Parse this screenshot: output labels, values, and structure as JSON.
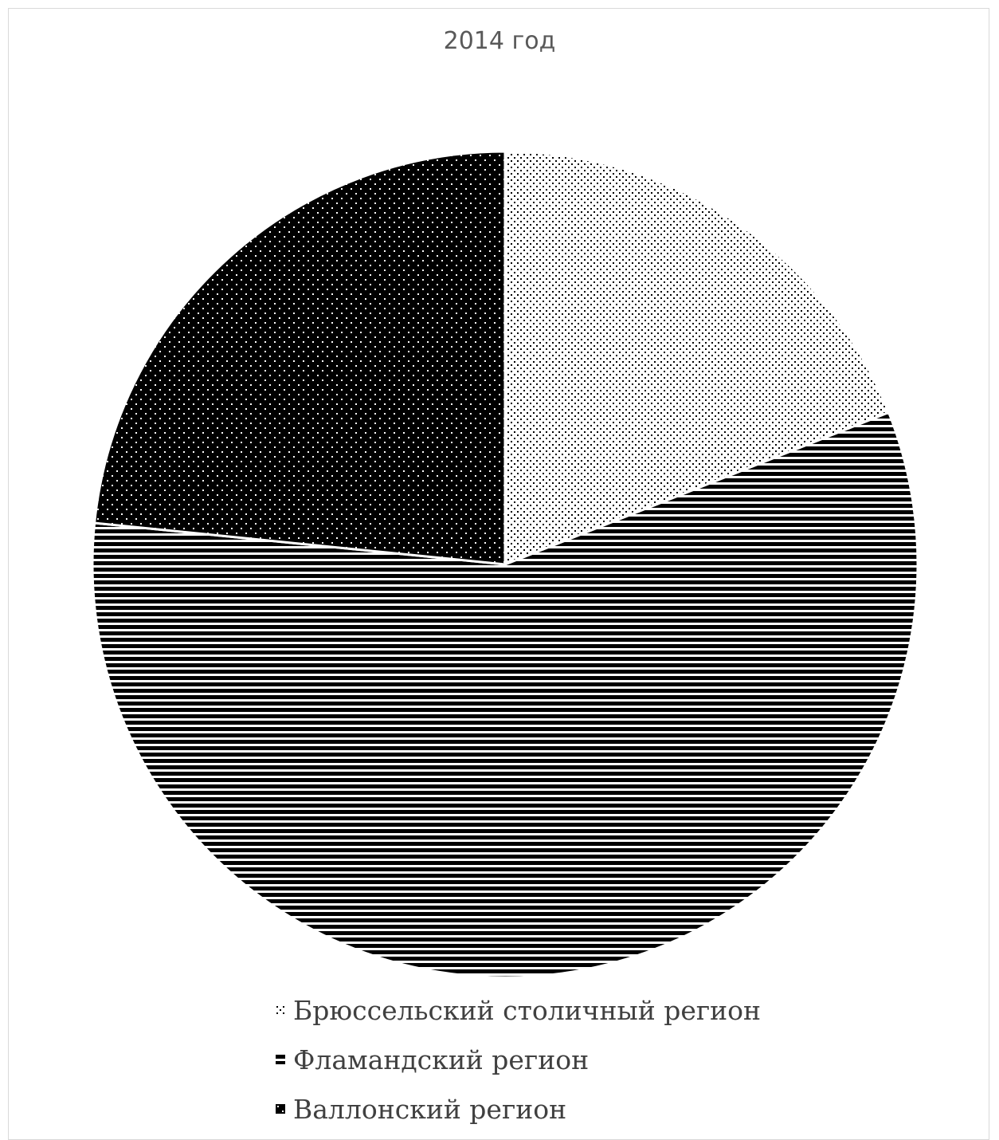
{
  "chart_data": {
    "type": "pie",
    "title": "2014 год",
    "slices": [
      {
        "label": "Брюссельский столичный регион",
        "value": 19.0,
        "pattern": "light-dots"
      },
      {
        "label": "Фламандский регион",
        "value": 57.6,
        "pattern": "horizontal-stripes"
      },
      {
        "label": "Валлонский регион",
        "value": 23.4,
        "pattern": "dark-dots"
      }
    ],
    "start_angle": "12 o'clock",
    "direction": "clockwise",
    "legend_position": "bottom",
    "colors": {
      "ink": "#000000",
      "paper": "#ffffff",
      "title": "#595959",
      "legend_text": "#404040"
    }
  }
}
